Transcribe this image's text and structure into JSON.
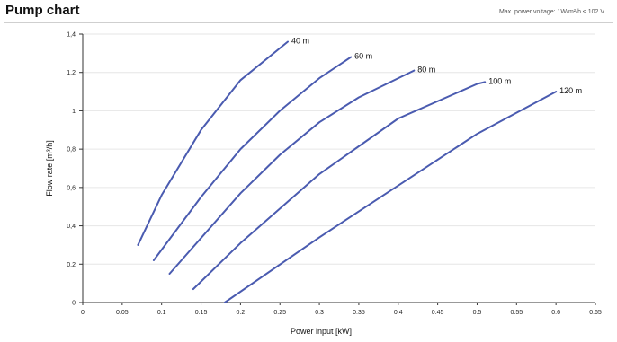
{
  "header": {
    "title": "Pump chart",
    "subtitle": "Max. power voltage: 1W/m²/h ≤ 102 V"
  },
  "chart_data": {
    "type": "line",
    "title": "Pump chart",
    "xlabel": "Power input [kW]",
    "ylabel": "Flow rate [m³/h]",
    "xlim": [
      0,
      0.65
    ],
    "ylim": [
      0,
      1.4
    ],
    "x_ticks": [
      0,
      0.05,
      0.1,
      0.15,
      0.2,
      0.25,
      0.3,
      0.35,
      0.4,
      0.45,
      0.5,
      0.55,
      0.6,
      0.65
    ],
    "x_tick_labels": [
      "0",
      "0.05",
      "0.1",
      "0.15",
      "0.2",
      "0.25",
      "0.3",
      "0.35",
      "0.4",
      "0.45",
      "0.5",
      "0.55",
      "0.6",
      "0.65"
    ],
    "y_ticks": [
      0,
      0.2,
      0.4,
      0.6,
      0.8,
      1.0,
      1.2,
      1.4
    ],
    "y_tick_labels": [
      "0",
      "0,2",
      "0,4",
      "0,6",
      "0,8",
      "1",
      "1,2",
      "1,4"
    ],
    "grid": true,
    "line_color": "#4a5bb0",
    "series": [
      {
        "name": "40 m",
        "x": [
          0.07,
          0.1,
          0.15,
          0.2,
          0.26
        ],
        "y": [
          0.3,
          0.56,
          0.9,
          1.16,
          1.36
        ]
      },
      {
        "name": "60 m",
        "x": [
          0.09,
          0.15,
          0.2,
          0.25,
          0.3,
          0.34
        ],
        "y": [
          0.22,
          0.55,
          0.8,
          1.0,
          1.17,
          1.28
        ]
      },
      {
        "name": "80 m",
        "x": [
          0.11,
          0.2,
          0.25,
          0.3,
          0.35,
          0.42
        ],
        "y": [
          0.15,
          0.57,
          0.77,
          0.94,
          1.07,
          1.21
        ]
      },
      {
        "name": "100 m",
        "x": [
          0.14,
          0.2,
          0.3,
          0.4,
          0.5,
          0.51
        ],
        "y": [
          0.07,
          0.31,
          0.67,
          0.96,
          1.14,
          1.15
        ]
      },
      {
        "name": "120 m",
        "x": [
          0.18,
          0.3,
          0.4,
          0.5,
          0.6
        ],
        "y": [
          0.0,
          0.34,
          0.61,
          0.88,
          1.1
        ]
      }
    ]
  }
}
